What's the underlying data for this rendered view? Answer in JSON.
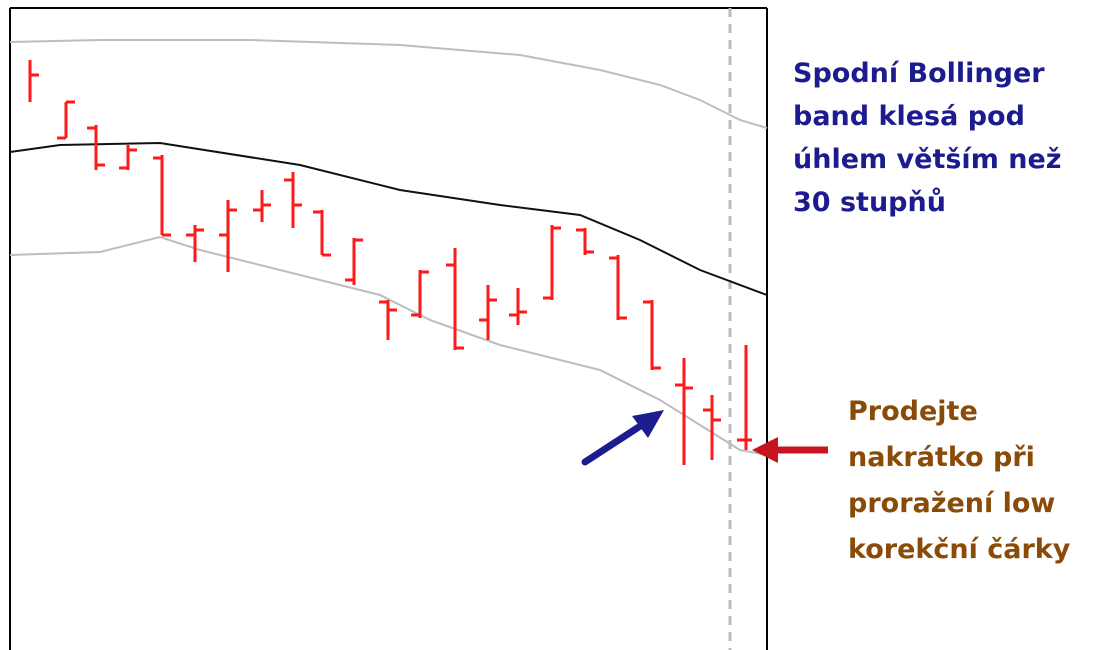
{
  "annotations": {
    "top_right": [
      "Spodní Bollinger",
      "band klesá pod",
      "úhlem větším než",
      "30 stupňů"
    ],
    "bottom_right": [
      "Prodejte",
      "nakrátko při",
      "proražení low",
      "korekční čárky"
    ]
  }
}
